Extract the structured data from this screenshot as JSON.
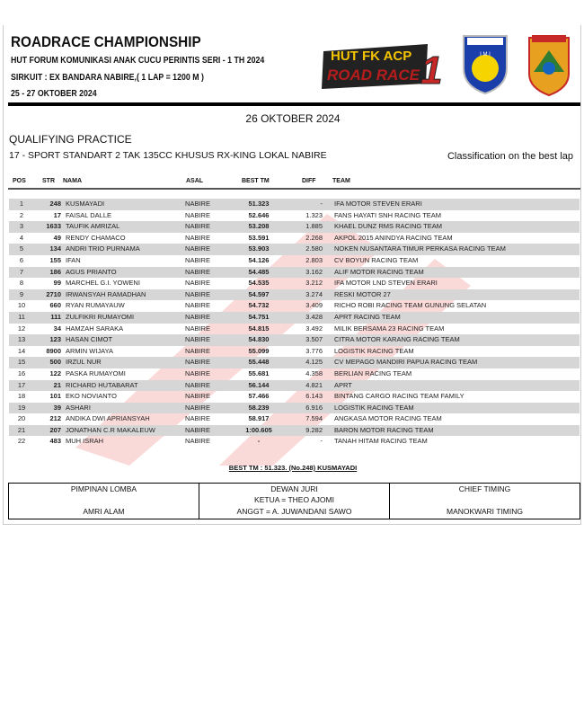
{
  "header": {
    "title": "ROADRACE CHAMPIONSHIP",
    "subtitle": "HUT FORUM KOMUNIKASI ANAK CUCU PERINTIS SERI - 1 TH 2024",
    "circuit": "SIRKUIT : EX BANDARA NABIRE,( 1 LAP = 1200 M )",
    "dates": "25 - 27 OKTOBER 2024"
  },
  "logos": {
    "event": "HUT FK ACP ROAD RACE 1 2024",
    "imi": "PAPUA TENGAH IMI",
    "province": "PAPUA TENGAH"
  },
  "date": "26 OKTOBER 2024",
  "session": "QUALIFYING PRACTICE",
  "class": "17 - SPORT STANDART 2 TAK 135CC KHUSUS RX-KING LOKAL NABIRE",
  "classification": "Classification on the best lap",
  "columns": [
    "POS",
    "STR",
    "NAMA",
    "ASAL",
    "BEST TM",
    "DIFF",
    "TEAM"
  ],
  "rows": [
    [
      "1",
      "248",
      "KUSMAYADI",
      "NABIRE",
      "51.323",
      "-",
      "IFA MOTOR STEVEN ERARI"
    ],
    [
      "2",
      "17",
      "FAISAL DALLE",
      "NABIRE",
      "52.646",
      "1.323",
      "FANS HAYATI SNH RACING TEAM"
    ],
    [
      "3",
      "1633",
      "TAUFIK AMRIZAL",
      "NABIRE",
      "53.208",
      "1.885",
      "KHAEL DUNZ RMS RACING TEAM"
    ],
    [
      "4",
      "49",
      "RENDY CHAMACO",
      "NABIRE",
      "53.591",
      "2.268",
      "AKPOL 2015 ANINDYA RACING TEAM"
    ],
    [
      "5",
      "134",
      "ANDRI TRIO PURNAMA",
      "NABIRE",
      "53.903",
      "2.580",
      "NOKEN NUSANTARA TIMUR PERKASA RACING TEAM"
    ],
    [
      "6",
      "155",
      "IFAN",
      "NABIRE",
      "54.126",
      "2.803",
      "CV BOYUN RACING TEAM"
    ],
    [
      "7",
      "186",
      "AGUS PRIANTO",
      "NABIRE",
      "54.485",
      "3.162",
      "ALIF MOTOR RACING TEAM"
    ],
    [
      "8",
      "99",
      "MARCHEL G.I. YOWENI",
      "NABIRE",
      "54.535",
      "3.212",
      "IFA MOTOR LND STEVEN ERARI"
    ],
    [
      "9",
      "2710",
      "IRWANSYAH RAMADHAN",
      "NABIRE",
      "54.597",
      "3.274",
      "RESKI MOTOR 27"
    ],
    [
      "10",
      "660",
      "RYAN RUMAYAUW",
      "NABIRE",
      "54.732",
      "3.409",
      "RICHO ROBI RACING TEAM GUNUNG SELATAN"
    ],
    [
      "11",
      "111",
      "ZULFIKRI RUMAYOMI",
      "NABIRE",
      "54.751",
      "3.428",
      "APRT RACING TEAM"
    ],
    [
      "12",
      "34",
      "HAMZAH SARAKA",
      "NABIRE",
      "54.815",
      "3.492",
      "MILIK BERSAMA 23 RACING TEAM"
    ],
    [
      "13",
      "123",
      "HASAN CIMOT",
      "NABIRE",
      "54.830",
      "3.507",
      "CITRA MOTOR KARANG RACING TEAM"
    ],
    [
      "14",
      "8900",
      "ARMIN WIJAYA",
      "NABIRE",
      "55.099",
      "3.776",
      "LOGISTIK RACING TEAM"
    ],
    [
      "15",
      "500",
      "IRZUL NUR",
      "NABIRE",
      "55.448",
      "4.125",
      "CV MEPAGO MANDIRI PAPUA RACING TEAM"
    ],
    [
      "16",
      "122",
      "PASKA RUMAYOMI",
      "NABIRE",
      "55.681",
      "4.358",
      "BERLIAN RACING TEAM"
    ],
    [
      "17",
      "21",
      "RICHARD HUTABARAT",
      "NABIRE",
      "56.144",
      "4.821",
      "APRT"
    ],
    [
      "18",
      "101",
      "EKO NOVIANTO",
      "NABIRE",
      "57.466",
      "6.143",
      "BINTANG CARGO RACING TEAM FAMILY"
    ],
    [
      "19",
      "39",
      "ASHARI",
      "NABIRE",
      "58.239",
      "6.916",
      "LOGISTIK RACING TEAM"
    ],
    [
      "20",
      "212",
      "ANDIKA DWI APRIANSYAH",
      "NABIRE",
      "58.917",
      "7.594",
      "ANGKASA MOTOR RACING TEAM"
    ],
    [
      "21",
      "207",
      "JONATHAN C.R MAKALEUW",
      "NABIRE",
      "1:00.605",
      "9.282",
      "BARON MOTOR RACING TEAM"
    ],
    [
      "22",
      "483",
      "MUH ISRAH",
      "NABIRE",
      "-",
      "-",
      "TANAH HITAM RACING TEAM"
    ]
  ],
  "best_tm": "BEST TM : 51.323. (No.248) KUSMAYADI",
  "footer": [
    {
      "title": "PIMPINAN LOMBA",
      "line1": "",
      "line2": "AMRI ALAM"
    },
    {
      "title": "DEWAN JURI",
      "line1": "KETUA = THEO AJOMI",
      "line2": "ANGGT = A. JUWANDANI SAWO"
    },
    {
      "title": "CHIEF TIMING",
      "line1": "",
      "line2": "MANOKWARI TIMING"
    }
  ],
  "colors": {
    "row_alt": "#d6d6d6",
    "watermark": "#e53935"
  }
}
